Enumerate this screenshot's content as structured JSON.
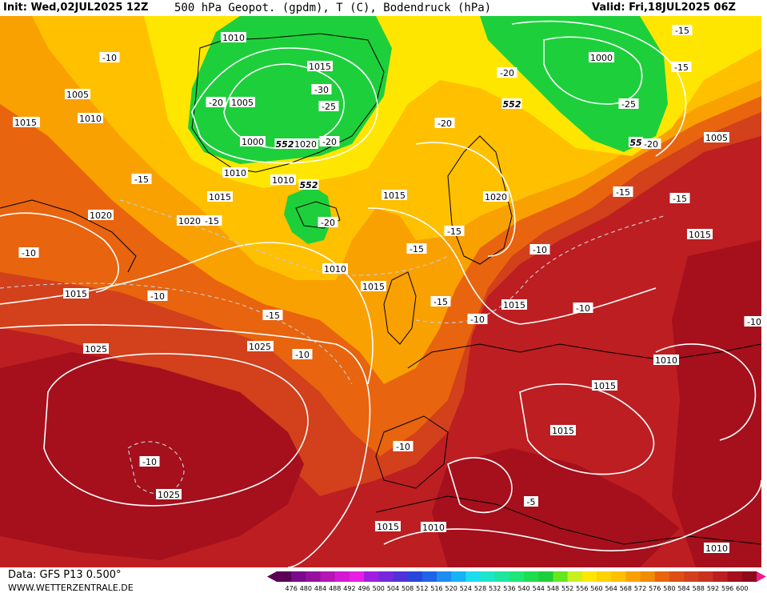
{
  "header": {
    "init": "Init: Wed,02JUL2025 12Z",
    "title": "500 hPa Geopot. (gpdm), T (C), Bodendruck (hPa)",
    "valid": "Valid: Fri,18JUL2025 06Z"
  },
  "footer": {
    "data_source": "Data: GFS P13 0.500°",
    "website": "WWW.WETTERZENTRALE.DE"
  },
  "colors": {
    "green": "#1ecf3c",
    "yellow": "#ffe600",
    "yellow_orange": "#ffc000",
    "orange": "#f9a100",
    "dark_orange": "#e8640e",
    "red_orange": "#d2401c",
    "red": "#bd1e22",
    "dark_red": "#a5101c"
  },
  "colorbar": {
    "ticks": [
      "476",
      "480",
      "484",
      "488",
      "492",
      "496",
      "500",
      "504",
      "508",
      "512",
      "516",
      "520",
      "524",
      "528",
      "532",
      "536",
      "540",
      "544",
      "548",
      "552",
      "556",
      "560",
      "564",
      "568",
      "572",
      "576",
      "580",
      "584",
      "588",
      "592",
      "596",
      "600"
    ],
    "colors": [
      "#5a0055",
      "#7a0a8c",
      "#96109f",
      "#b614b4",
      "#d21ad2",
      "#e81ee6",
      "#a01ee0",
      "#7828dc",
      "#5032d8",
      "#2846dc",
      "#1e64e6",
      "#1e8cf0",
      "#14b4f5",
      "#1edcf0",
      "#1ee6c8",
      "#1ee6a0",
      "#1ee678",
      "#1ede50",
      "#1ecf3c",
      "#66e61e",
      "#c8f01e",
      "#ffe600",
      "#ffd200",
      "#ffc000",
      "#f9a100",
      "#f08c08",
      "#e8640e",
      "#dc5014",
      "#d2401c",
      "#c8321e",
      "#bd1e22",
      "#a5101c",
      "#8c0a1c"
    ]
  },
  "map": {
    "pressure_labels": [
      {
        "text": "1010"
      },
      {
        "text": "1005"
      },
      {
        "text": "1000"
      },
      {
        "text": "1020"
      },
      {
        "text": "1015"
      },
      {
        "text": "1010"
      },
      {
        "text": "1015"
      },
      {
        "text": "1005"
      },
      {
        "text": "1010"
      },
      {
        "text": "1015"
      },
      {
        "text": "1020"
      },
      {
        "text": "1010"
      },
      {
        "text": "1015"
      },
      {
        "text": "1020"
      },
      {
        "text": "1020"
      },
      {
        "text": "1025"
      },
      {
        "text": "1025"
      },
      {
        "text": "1015"
      },
      {
        "text": "1015"
      },
      {
        "text": "1010"
      },
      {
        "text": "1015"
      },
      {
        "text": "1015"
      },
      {
        "text": "1010"
      },
      {
        "text": "1015"
      },
      {
        "text": "1015"
      },
      {
        "text": "1025"
      },
      {
        "text": "1015"
      },
      {
        "text": "1010"
      },
      {
        "text": "1000"
      },
      {
        "text": "1025"
      },
      {
        "text": "1005"
      },
      {
        "text": "1010"
      },
      {
        "text": "1015"
      },
      {
        "text": "1020"
      },
      {
        "text": "1010"
      },
      {
        "text": "1015"
      },
      {
        "text": "1020"
      }
    ],
    "temperature_labels": [
      {
        "text": "-10"
      },
      {
        "text": "-20"
      },
      {
        "text": "-30"
      },
      {
        "text": "-25"
      },
      {
        "text": "-20"
      },
      {
        "text": "-15"
      },
      {
        "text": "-15"
      },
      {
        "text": "-20"
      },
      {
        "text": "-10"
      },
      {
        "text": "-10"
      },
      {
        "text": "-15"
      },
      {
        "text": "-10"
      },
      {
        "text": "-20"
      },
      {
        "text": "-15"
      },
      {
        "text": "-15"
      },
      {
        "text": "-15"
      },
      {
        "text": "-10"
      },
      {
        "text": "-10"
      },
      {
        "text": "-10"
      },
      {
        "text": "-10"
      },
      {
        "text": "-10"
      },
      {
        "text": "-5"
      },
      {
        "text": "-20"
      },
      {
        "text": "-25"
      },
      {
        "text": "-20"
      },
      {
        "text": "-15"
      },
      {
        "text": "-15"
      },
      {
        "text": "-15"
      },
      {
        "text": "-10"
      },
      {
        "text": "-15"
      }
    ],
    "geopotential_labels": [
      {
        "text": "552"
      },
      {
        "text": "552"
      },
      {
        "text": "552"
      },
      {
        "text": "55"
      }
    ]
  }
}
